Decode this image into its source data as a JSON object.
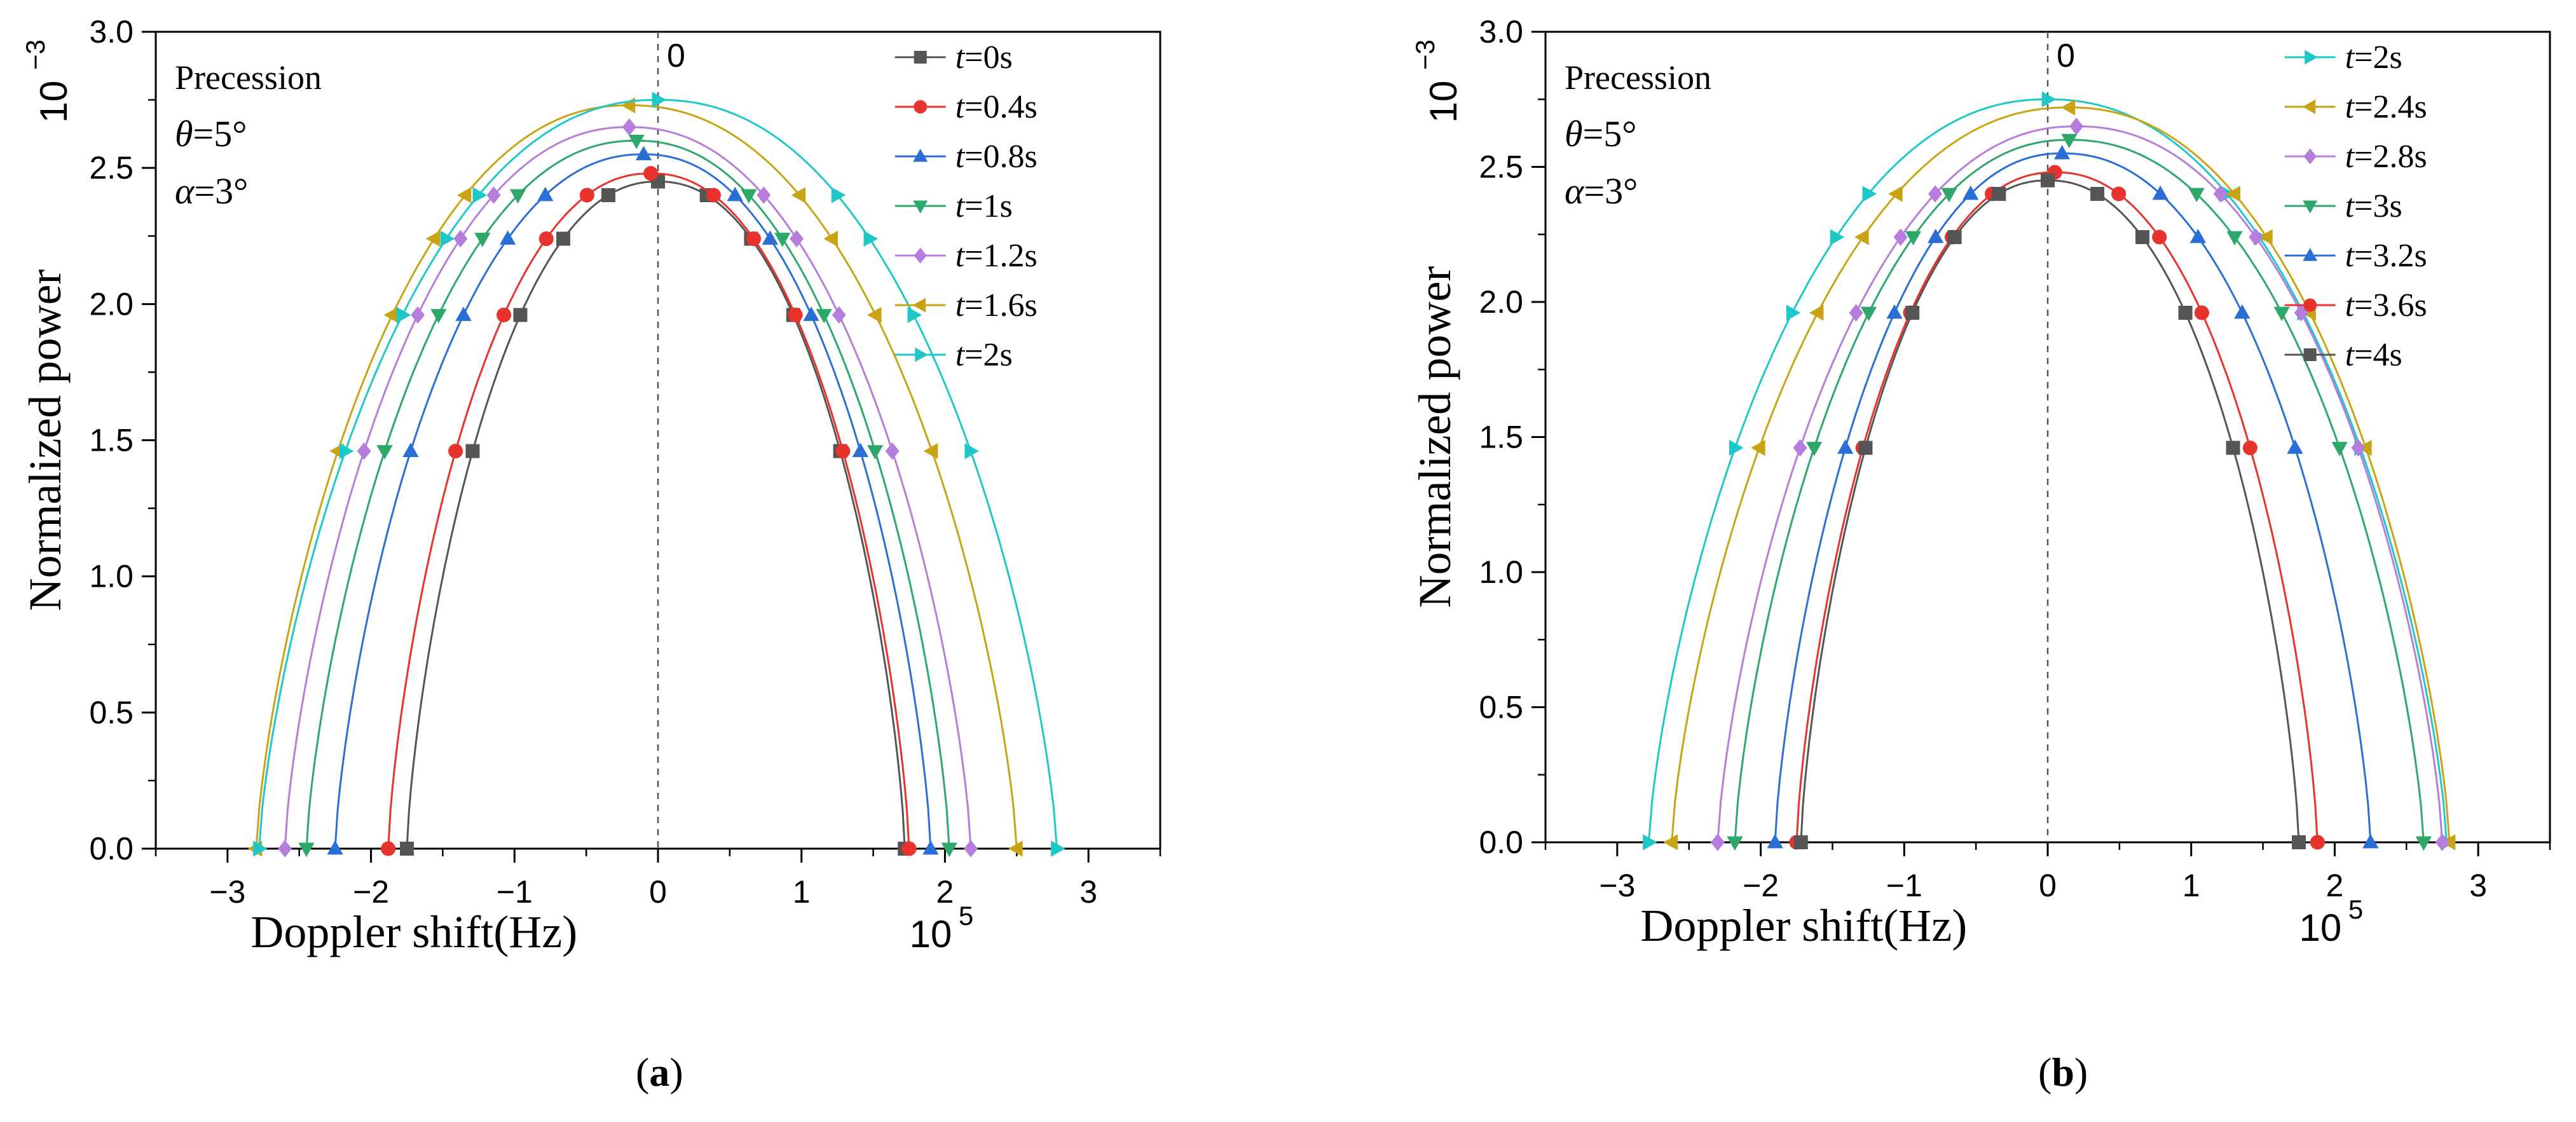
{
  "chart_data": [
    {
      "panel_label": "a",
      "type": "line",
      "title": "Precession",
      "annotations": {
        "line1": "Precession",
        "theta_symbol": "θ",
        "theta_value": "=5°",
        "alpha_symbol": "α",
        "alpha_value": "=3°",
        "zero_label": "0"
      },
      "xlabel": "Doppler shift(Hz)",
      "xscale_label": "10",
      "xscale_exp": "5",
      "ylabel": "Normalized power",
      "yscale_label": "10",
      "yscale_exp": "−3",
      "xlim": [
        -3.5,
        3.5
      ],
      "ylim": [
        0.0,
        3.0
      ],
      "xticks": [
        "−3",
        "−2",
        "−1",
        "0",
        "1",
        "2",
        "3"
      ],
      "yticks": [
        "0.0",
        "0.5",
        "1.0",
        "1.5",
        "2.0",
        "2.5",
        "3.0"
      ],
      "legend_position": "top-right",
      "series": [
        {
          "name": "t=0s",
          "var": "t",
          "value": "=0s",
          "color": "#555555",
          "marker": "square",
          "left": -1.75,
          "right": 1.72,
          "peak_x": 0.0,
          "peak_y": 2.45
        },
        {
          "name": "t=0.4s",
          "var": "t",
          "value": "=0.4s",
          "color": "#e8322e",
          "marker": "circle",
          "left": -1.88,
          "right": 1.75,
          "peak_x": -0.05,
          "peak_y": 2.48
        },
        {
          "name": "t=0.8s",
          "var": "t",
          "value": "=0.8s",
          "color": "#2a6fd6",
          "marker": "triangle-up",
          "left": -2.25,
          "right": 1.9,
          "peak_x": -0.1,
          "peak_y": 2.55
        },
        {
          "name": "t=1s",
          "var": "t",
          "value": "=1s",
          "color": "#2ea86a",
          "marker": "triangle-down",
          "left": -2.45,
          "right": 2.03,
          "peak_x": -0.15,
          "peak_y": 2.6
        },
        {
          "name": "t=1.2s",
          "var": "t",
          "value": "=1.2s",
          "color": "#b57edc",
          "marker": "diamond",
          "left": -2.6,
          "right": 2.18,
          "peak_x": -0.2,
          "peak_y": 2.65
        },
        {
          "name": "t=1.6s",
          "var": "t",
          "value": "=1.6s",
          "color": "#c8a415",
          "marker": "triangle-left",
          "left": -2.8,
          "right": 2.5,
          "peak_x": -0.2,
          "peak_y": 2.73
        },
        {
          "name": "t=2s",
          "var": "t",
          "value": "=2s",
          "color": "#1ec8c8",
          "marker": "triangle-right",
          "left": -2.78,
          "right": 2.78,
          "peak_x": 0.0,
          "peak_y": 2.75
        }
      ]
    },
    {
      "panel_label": "b",
      "type": "line",
      "title": "Precession",
      "annotations": {
        "line1": "Precession",
        "theta_symbol": "θ",
        "theta_value": "=5°",
        "alpha_symbol": "α",
        "alpha_value": "=3°",
        "zero_label": "0"
      },
      "xlabel": "Doppler shift(Hz)",
      "xscale_label": "10",
      "xscale_exp": "5",
      "ylabel": "Normalized power",
      "yscale_label": "10",
      "yscale_exp": "−3",
      "xlim": [
        -3.5,
        3.5
      ],
      "ylim": [
        0.0,
        3.0
      ],
      "xticks": [
        "−3",
        "−2",
        "−1",
        "0",
        "1",
        "2",
        "3"
      ],
      "yticks": [
        "0.0",
        "0.5",
        "1.0",
        "1.5",
        "2.0",
        "2.5",
        "3.0"
      ],
      "legend_position": "top-right",
      "series": [
        {
          "name": "t=2s",
          "var": "t",
          "value": "=2s",
          "color": "#1ec8c8",
          "marker": "triangle-right",
          "left": -2.78,
          "right": 2.78,
          "peak_x": 0.0,
          "peak_y": 2.75
        },
        {
          "name": "t=2.4s",
          "var": "t",
          "value": "=2.4s",
          "color": "#c8a415",
          "marker": "triangle-left",
          "left": -2.62,
          "right": 2.8,
          "peak_x": 0.15,
          "peak_y": 2.72
        },
        {
          "name": "t=2.8s",
          "var": "t",
          "value": "=2.8s",
          "color": "#b57edc",
          "marker": "diamond",
          "left": -2.3,
          "right": 2.75,
          "peak_x": 0.2,
          "peak_y": 2.65
        },
        {
          "name": "t=3s",
          "var": "t",
          "value": "=3s",
          "color": "#2ea86a",
          "marker": "triangle-down",
          "left": -2.18,
          "right": 2.62,
          "peak_x": 0.15,
          "peak_y": 2.6
        },
        {
          "name": "t=3.2s",
          "var": "t",
          "value": "=3.2s",
          "color": "#2a6fd6",
          "marker": "triangle-up",
          "left": -1.9,
          "right": 2.25,
          "peak_x": 0.1,
          "peak_y": 2.55
        },
        {
          "name": "t=3.6s",
          "var": "t",
          "value": "=3.6s",
          "color": "#e8322e",
          "marker": "circle",
          "left": -1.75,
          "right": 1.88,
          "peak_x": 0.05,
          "peak_y": 2.48
        },
        {
          "name": "t=4s",
          "var": "t",
          "value": "=4s",
          "color": "#555555",
          "marker": "square",
          "left": -1.72,
          "right": 1.75,
          "peak_x": 0.0,
          "peak_y": 2.45
        }
      ]
    }
  ]
}
